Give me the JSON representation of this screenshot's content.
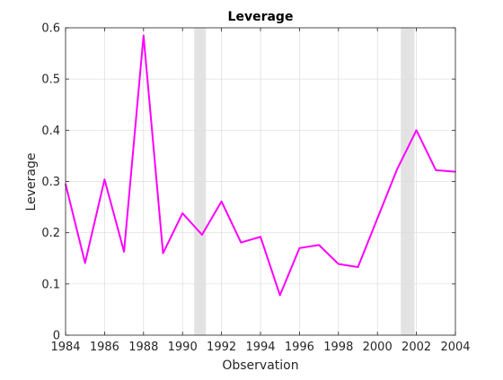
{
  "chart_data": {
    "type": "line",
    "title": "Leverage",
    "xlabel": "Observation",
    "ylabel": "Leverage",
    "xlim": [
      1984,
      2004
    ],
    "ylim": [
      0,
      0.6
    ],
    "grid": true,
    "x_ticks": [
      "1984",
      "1986",
      "1988",
      "1990",
      "1992",
      "1994",
      "1996",
      "1998",
      "2000",
      "2002",
      "2004"
    ],
    "y_ticks": [
      "0",
      "0.1",
      "0.2",
      "0.3",
      "0.4",
      "0.5",
      "0.6"
    ],
    "shaded_regions": [
      {
        "start": 1990.6,
        "end": 1991.2
      },
      {
        "start": 2001.2,
        "end": 2001.9
      }
    ],
    "shade_color": "#e3e3e3",
    "series": [
      {
        "color": "#ff00ff",
        "x": [
          1984,
          1985,
          1986,
          1987,
          1988,
          1989,
          1990,
          1991,
          1992,
          1993,
          1994,
          1995,
          1996,
          1997,
          1998,
          1999,
          2000,
          2001,
          2002,
          2003,
          2004
        ],
        "y": [
          0.295,
          0.141,
          0.304,
          0.163,
          0.585,
          0.16,
          0.238,
          0.196,
          0.261,
          0.181,
          0.192,
          0.078,
          0.17,
          0.176,
          0.139,
          0.133,
          0.228,
          0.323,
          0.4,
          0.322,
          0.319
        ]
      }
    ]
  }
}
